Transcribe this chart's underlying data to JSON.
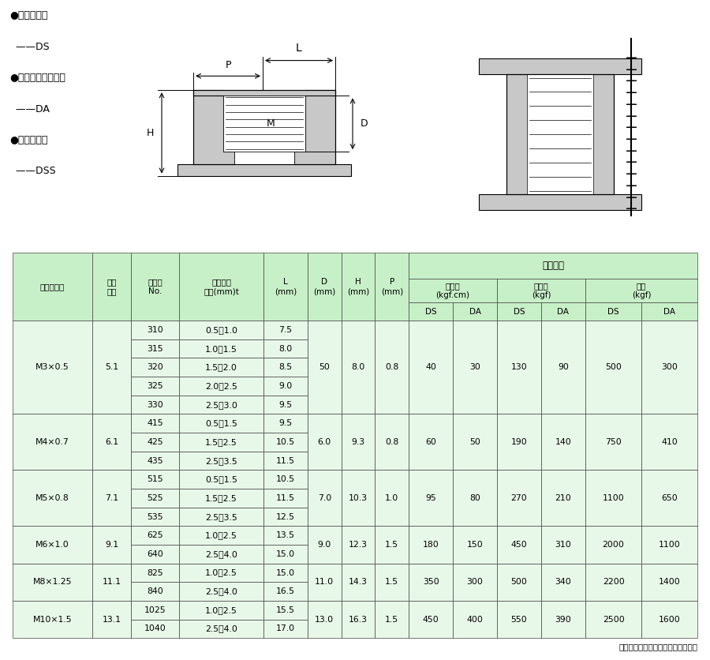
{
  "bg_color": "#ffffff",
  "header_green": "#c8f0c8",
  "light_green": "#e8f8e8",
  "border_color": "#000000",
  "text_color": "#000000",
  "legend_lines": [
    "●スティール",
    "  ——DS",
    "●アルミニウム合金",
    "  ——DA",
    "●ステンレス",
    "  ——DSS"
  ],
  "rows": [
    {
      "size": "M3×0.5",
      "hole": "5.1",
      "codes": [
        "310",
        "315",
        "320",
        "325",
        "330"
      ],
      "ranges": [
        "0.5～1.0",
        "1.0～1.5",
        "1.5～2.0",
        "2.0～2.5",
        "2.5～3.0"
      ],
      "L_vals": [
        "7.5",
        "8.0",
        "8.5",
        "9.0",
        "9.5"
      ],
      "D": "50",
      "H": "8.0",
      "P": "0.8",
      "torque_DS": "40",
      "torque_DA": "30",
      "shear_DS": "130",
      "shear_DA": "90",
      "tension_DS": "500",
      "tension_DA": "300"
    },
    {
      "size": "M4×0.7",
      "hole": "6.1",
      "codes": [
        "415",
        "425",
        "435"
      ],
      "ranges": [
        "0.5～1.5",
        "1.5～2.5",
        "2.5～3.5"
      ],
      "L_vals": [
        "9.5",
        "10.5",
        "11.5"
      ],
      "D": "6.0",
      "H": "9.3",
      "P": "0.8",
      "torque_DS": "60",
      "torque_DA": "50",
      "shear_DS": "190",
      "shear_DA": "140",
      "tension_DS": "750",
      "tension_DA": "410"
    },
    {
      "size": "M5×0.8",
      "hole": "7.1",
      "codes": [
        "515",
        "525",
        "535"
      ],
      "ranges": [
        "0.5～1.5",
        "1.5～2.5",
        "2.5～3.5"
      ],
      "L_vals": [
        "10.5",
        "11.5",
        "12.5"
      ],
      "D": "7.0",
      "H": "10.3",
      "P": "1.0",
      "torque_DS": "95",
      "torque_DA": "80",
      "shear_DS": "270",
      "shear_DA": "210",
      "tension_DS": "1100",
      "tension_DA": "650"
    },
    {
      "size": "M6×1.0",
      "hole": "9.1",
      "codes": [
        "625",
        "640"
      ],
      "ranges": [
        "1.0～2.5",
        "2.5～4.0"
      ],
      "L_vals": [
        "13.5",
        "15.0"
      ],
      "D": "9.0",
      "H": "12.3",
      "P": "1.5",
      "torque_DS": "180",
      "torque_DA": "150",
      "shear_DS": "450",
      "shear_DA": "310",
      "tension_DS": "2000",
      "tension_DA": "1100"
    },
    {
      "size": "M8×1.25",
      "hole": "11.1",
      "codes": [
        "825",
        "840"
      ],
      "ranges": [
        "1.0～2.5",
        "2.5～4.0"
      ],
      "L_vals": [
        "15.0",
        "16.5"
      ],
      "D": "11.0",
      "H": "14.3",
      "P": "1.5",
      "torque_DS": "350",
      "torque_DA": "300",
      "shear_DS": "500",
      "shear_DA": "340",
      "tension_DS": "2200",
      "tension_DA": "1400"
    },
    {
      "size": "M10×1.5",
      "hole": "13.1",
      "codes": [
        "1025",
        "1040"
      ],
      "ranges": [
        "1.0～2.5",
        "2.5～4.0"
      ],
      "L_vals": [
        "15.5",
        "17.0"
      ],
      "D": "13.0",
      "H": "16.3",
      "P": "1.5",
      "torque_DS": "450",
      "torque_DA": "400",
      "shear_DS": "550",
      "shear_DA": "390",
      "tension_DS": "2500",
      "tension_DA": "1600"
    }
  ],
  "footer_note": "各材質で特殊ナット製作可能です。"
}
